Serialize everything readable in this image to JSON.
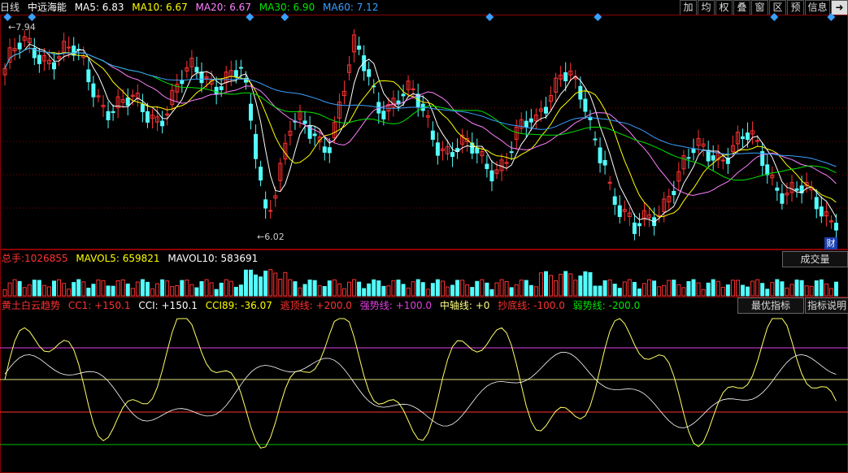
{
  "header": {
    "period": "日线",
    "stock_name": "中远海能",
    "ma5": "MA5: 6.83",
    "ma10": "MA10: 6.67",
    "ma20": "MA20: 6.67",
    "ma30": "MA30: 6.90",
    "ma60": "MA60: 7.12"
  },
  "toolbar": [
    "加",
    "均",
    "权",
    "叠",
    "窗",
    "区",
    "预",
    "信息",
    "➜"
  ],
  "price_panel": {
    "high_label": "7.94",
    "low_label": "6.02",
    "cai_button": "财"
  },
  "volume_panel": {
    "total_label": "总手:",
    "total_value": "1026855",
    "mavol5": "MAVOL5: 659821",
    "mavol10": "MAVOL10: 583691",
    "button": "成交量"
  },
  "indicator_panel": {
    "name": "黄土白云趋势",
    "cc1": "CC1: +150.1",
    "cci": "CCI: +150.1",
    "cci89": "CCI89: -36.07",
    "escape": "逃顶线: +200.0",
    "strong": "强势线: +100.0",
    "middle": "中轴线: +0",
    "bottom": "抄底线: -100.0",
    "weak": "弱势线: -200.0",
    "btn_best": "最优指标",
    "btn_help": "指标说明"
  },
  "colors": {
    "up": "#ff3232",
    "down": "#54fcfc",
    "ma5": "#ffffff",
    "ma10": "#ffff00",
    "ma20": "#ff80ff",
    "ma30": "#00e600",
    "ma60": "#3aa0ff",
    "grid": "#8b0000"
  }
}
